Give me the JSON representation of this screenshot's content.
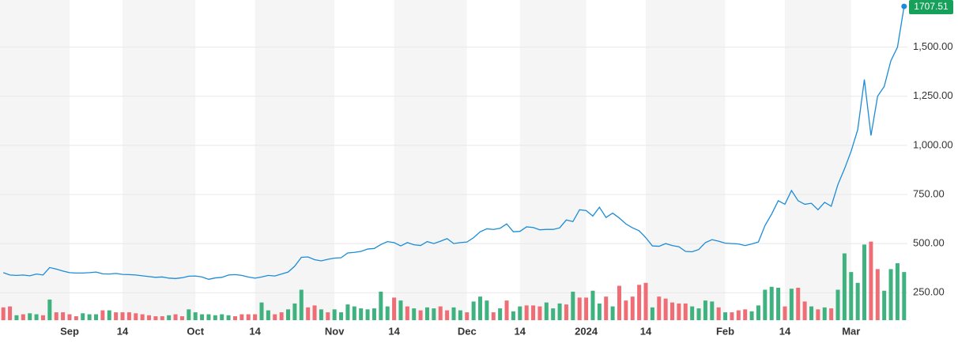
{
  "chart_data": {
    "type": "line",
    "categories": [
      null,
      null,
      null,
      null,
      null,
      null,
      null,
      null,
      null,
      null,
      "Sep",
      null,
      null,
      null,
      null,
      null,
      null,
      null,
      "14",
      null,
      null,
      null,
      null,
      null,
      null,
      null,
      null,
      null,
      null,
      "Oct",
      null,
      null,
      null,
      null,
      null,
      null,
      null,
      null,
      "14",
      null,
      null,
      null,
      null,
      null,
      null,
      null,
      null,
      null,
      null,
      null,
      "Nov",
      null,
      null,
      null,
      null,
      null,
      null,
      null,
      null,
      "14",
      null,
      null,
      null,
      null,
      null,
      null,
      null,
      null,
      null,
      null,
      "Dec",
      null,
      null,
      null,
      null,
      null,
      null,
      null,
      "14",
      null,
      null,
      null,
      null,
      null,
      null,
      null,
      null,
      null,
      "2024",
      null,
      null,
      null,
      null,
      null,
      null,
      null,
      null,
      "14",
      null,
      null,
      null,
      null,
      null,
      null,
      null,
      null,
      null,
      null,
      null,
      "Feb",
      null,
      null,
      null,
      null,
      null,
      null,
      null,
      null,
      "14",
      null,
      null,
      null,
      null,
      null,
      null,
      null,
      null,
      null,
      "Mar",
      null,
      null,
      null,
      null,
      null,
      null,
      null,
      null
    ],
    "values": [
      352,
      340,
      338,
      340,
      336,
      345,
      340,
      378,
      370,
      360,
      352,
      350,
      350,
      352,
      355,
      346,
      345,
      348,
      343,
      342,
      340,
      336,
      332,
      328,
      330,
      324,
      322,
      326,
      334,
      335,
      330,
      318,
      325,
      328,
      340,
      342,
      338,
      330,
      324,
      330,
      338,
      335,
      345,
      355,
      385,
      430,
      432,
      418,
      412,
      420,
      426,
      428,
      452,
      455,
      460,
      472,
      475,
      495,
      510,
      505,
      488,
      505,
      494,
      490,
      510,
      500,
      512,
      525,
      500,
      505,
      508,
      530,
      560,
      575,
      572,
      578,
      600,
      560,
      562,
      585,
      582,
      570,
      572,
      572,
      580,
      620,
      612,
      672,
      668,
      640,
      685,
      633,
      655,
      630,
      600,
      580,
      565,
      530,
      488,
      486,
      500,
      490,
      484,
      460,
      458,
      470,
      505,
      520,
      512,
      502,
      500,
      498,
      490,
      498,
      508,
      592,
      650,
      718,
      700,
      770,
      718,
      700,
      705,
      672,
      710,
      690,
      800,
      880,
      970,
      1080,
      1335,
      1050,
      1250,
      1300,
      1430,
      1500,
      1707.51
    ],
    "color": "#1a8cd8",
    "volume_values": [
      175,
      180,
      135,
      140,
      145,
      140,
      135,
      215,
      150,
      150,
      140,
      130,
      145,
      140,
      140,
      160,
      160,
      150,
      150,
      150,
      145,
      140,
      135,
      130,
      130,
      135,
      140,
      130,
      165,
      150,
      140,
      140,
      135,
      140,
      135,
      130,
      140,
      140,
      140,
      200,
      160,
      140,
      150,
      165,
      195,
      265,
      175,
      185,
      165,
      150,
      165,
      150,
      190,
      180,
      170,
      165,
      170,
      255,
      180,
      225,
      210,
      180,
      170,
      160,
      175,
      170,
      180,
      160,
      175,
      160,
      150,
      205,
      230,
      210,
      150,
      170,
      210,
      155,
      180,
      185,
      185,
      180,
      200,
      170,
      195,
      190,
      255,
      225,
      225,
      260,
      195,
      230,
      180,
      285,
      210,
      230,
      290,
      300,
      175,
      230,
      220,
      200,
      195,
      195,
      180,
      170,
      210,
      205,
      175,
      150,
      150,
      160,
      165,
      155,
      185,
      265,
      280,
      275,
      180,
      270,
      275,
      205,
      180,
      165,
      175,
      170,
      265,
      450,
      355,
      300,
      495,
      510,
      370,
      260,
      370,
      400,
      355
    ],
    "volume_colors": [
      "#ef6e75",
      "#ef6e75",
      "#3fb27f",
      "#ef6e75",
      "#3fb27f",
      "#3fb27f",
      "#ef6e75",
      "#3fb27f",
      "#ef6e75",
      "#ef6e75",
      "#ef6e75",
      "#ef6e75",
      "#3fb27f",
      "#3fb27f",
      "#3fb27f",
      "#ef6e75",
      "#3fb27f",
      "#ef6e75",
      "#ef6e75",
      "#ef6e75",
      "#ef6e75",
      "#ef6e75",
      "#ef6e75",
      "#ef6e75",
      "#ef6e75",
      "#3fb27f",
      "#ef6e75",
      "#ef6e75",
      "#3fb27f",
      "#3fb27f",
      "#3fb27f",
      "#3fb27f",
      "#3fb27f",
      "#3fb27f",
      "#3fb27f",
      "#ef6e75",
      "#ef6e75",
      "#ef6e75",
      "#ef6e75",
      "#3fb27f",
      "#3fb27f",
      "#ef6e75",
      "#ef6e75",
      "#3fb27f",
      "#3fb27f",
      "#3fb27f",
      "#ef6e75",
      "#ef6e75",
      "#3fb27f",
      "#ef6e75",
      "#3fb27f",
      "#3fb27f",
      "#3fb27f",
      "#3fb27f",
      "#3fb27f",
      "#3fb27f",
      "#3fb27f",
      "#3fb27f",
      "#3fb27f",
      "#ef6e75",
      "#3fb27f",
      "#ef6e75",
      "#3fb27f",
      "#ef6e75",
      "#3fb27f",
      "#3fb27f",
      "#ef6e75",
      "#ef6e75",
      "#3fb27f",
      "#3fb27f",
      "#ef6e75",
      "#3fb27f",
      "#3fb27f",
      "#3fb27f",
      "#ef6e75",
      "#3fb27f",
      "#ef6e75",
      "#3fb27f",
      "#3fb27f",
      "#ef6e75",
      "#ef6e75",
      "#ef6e75",
      "#3fb27f",
      "#3fb27f",
      "#3fb27f",
      "#ef6e75",
      "#3fb27f",
      "#ef6e75",
      "#ef6e75",
      "#3fb27f",
      "#3fb27f",
      "#ef6e75",
      "#3fb27f",
      "#ef6e75",
      "#ef6e75",
      "#ef6e75",
      "#ef6e75",
      "#ef6e75",
      "#3fb27f",
      "#ef6e75",
      "#ef6e75",
      "#ef6e75",
      "#ef6e75",
      "#ef6e75",
      "#3fb27f",
      "#3fb27f",
      "#3fb27f",
      "#3fb27f",
      "#ef6e75",
      "#3fb27f",
      "#ef6e75",
      "#ef6e75",
      "#ef6e75",
      "#3fb27f",
      "#3fb27f",
      "#3fb27f",
      "#3fb27f",
      "#3fb27f",
      "#ef6e75",
      "#3fb27f",
      "#ef6e75",
      "#ef6e75",
      "#3fb27f",
      "#ef6e75",
      "#3fb27f",
      "#ef6e75",
      "#3fb27f",
      "#3fb27f",
      "#3fb27f",
      "#3fb27f",
      "#3fb27f",
      "#ef6e75",
      "#ef6e75",
      "#3fb27f",
      "#3fb27f",
      "#3fb27f",
      "#3fb27f"
    ],
    "ylim": [
      110,
      1740
    ],
    "yticks": [
      {
        "value": 250,
        "label": "250.00"
      },
      {
        "value": 500,
        "label": "500.00"
      },
      {
        "value": 750,
        "label": "750.00"
      },
      {
        "value": 1000,
        "label": "1,000.00"
      },
      {
        "value": 1250,
        "label": "1,250.00"
      },
      {
        "value": 1500,
        "label": "1,500.00"
      }
    ],
    "grid": true
  }
}
